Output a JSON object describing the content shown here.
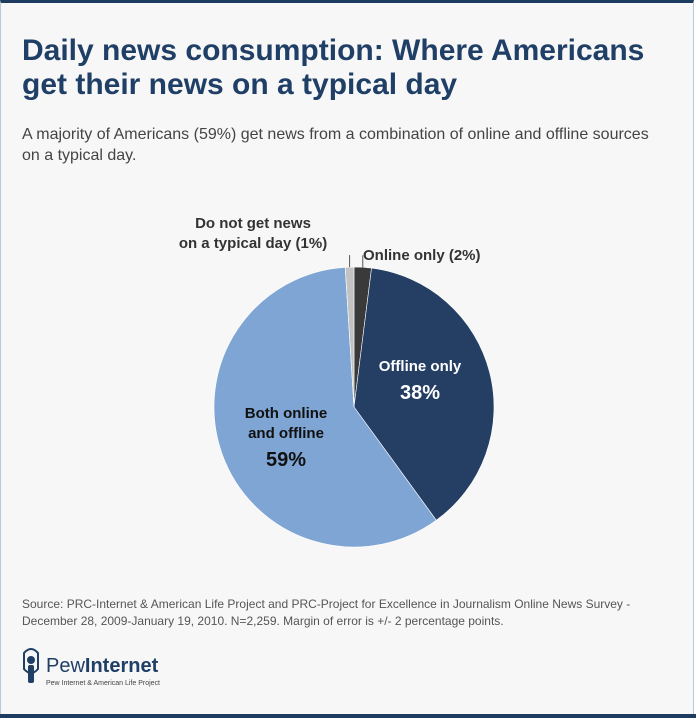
{
  "title": "Daily news consumption: Where Americans get their news on a typical day",
  "subtitle": "A majority of Americans (59%) get news from a combination of online and offline sources on a typical day.",
  "source": "Source: PRC-Internet & American Life Project and PRC-Project for Excellence in Journalism Online News Survey - December 28, 2009-January 19, 2010. N=2,259. Margin of error is +/- 2 percentage points.",
  "logo": {
    "pew": "Pew",
    "internet": "Internet",
    "tagline": "Pew Internet & American Life Project"
  },
  "colors": {
    "title": "#1f3f66",
    "frame": "#1e3c5f"
  },
  "chart_data": {
    "type": "pie",
    "start_angle_deg": 0,
    "slices": [
      {
        "label_lines": [
          "Online only (2%)"
        ],
        "value": 2,
        "color": "#3a3a3a"
      },
      {
        "label_lines": [
          "Offline only",
          "38%"
        ],
        "value": 38,
        "color": "#243f63"
      },
      {
        "label_lines": [
          "Both online",
          "and offline",
          "59%"
        ],
        "value": 59,
        "color": "#7ea5d3"
      },
      {
        "label_lines": [
          "Do not get news",
          "on a typical day (1%)"
        ],
        "value": 1,
        "color": "#c3c3c3"
      }
    ]
  }
}
